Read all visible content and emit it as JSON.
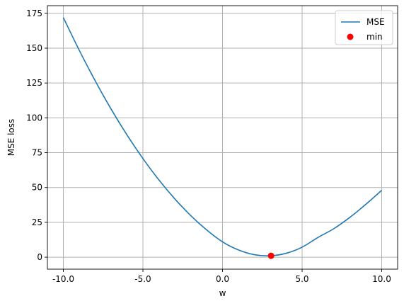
{
  "chart_data": {
    "type": "line",
    "title": "",
    "xlabel": "w",
    "ylabel": "MSE loss",
    "xlim": [
      -11.0,
      11.0
    ],
    "ylim": [
      -8.6,
      180.5
    ],
    "grid": true,
    "legend_position": "top-right",
    "x_ticks": [
      {
        "value": -10,
        "label": "-10.0"
      },
      {
        "value": -5,
        "label": "-5.0"
      },
      {
        "value": 0,
        "label": "0.0"
      },
      {
        "value": 5,
        "label": "5.0"
      },
      {
        "value": 10,
        "label": "10.0"
      }
    ],
    "y_ticks": [
      {
        "value": 0,
        "label": "0"
      },
      {
        "value": 25,
        "label": "25"
      },
      {
        "value": 50,
        "label": "50"
      },
      {
        "value": 75,
        "label": "75"
      },
      {
        "value": 100,
        "label": "100"
      },
      {
        "value": 125,
        "label": "125"
      },
      {
        "value": 150,
        "label": "150"
      },
      {
        "value": 175,
        "label": "175"
      }
    ],
    "series": [
      {
        "name": "MSE",
        "kind": "line",
        "color": "#1f77b4",
        "x": [
          -10,
          -9,
          -8,
          -7,
          -6,
          -5,
          -4,
          -3,
          -2,
          -1,
          0,
          1,
          2,
          3,
          4,
          5,
          6,
          7,
          8,
          9,
          10
        ],
        "y": [
          172.0,
          148.5,
          126.6,
          106.3,
          87.7,
          70.8,
          55.5,
          41.9,
          29.9,
          19.6,
          11.0,
          5.2,
          1.8,
          1.0,
          2.8,
          7.2,
          14.2,
          20.5,
          28.6,
          37.9,
          48.0
        ]
      },
      {
        "name": "min",
        "kind": "scatter",
        "color": "#ff0000",
        "x": [
          3.05
        ],
        "y": [
          1.0
        ]
      }
    ]
  }
}
